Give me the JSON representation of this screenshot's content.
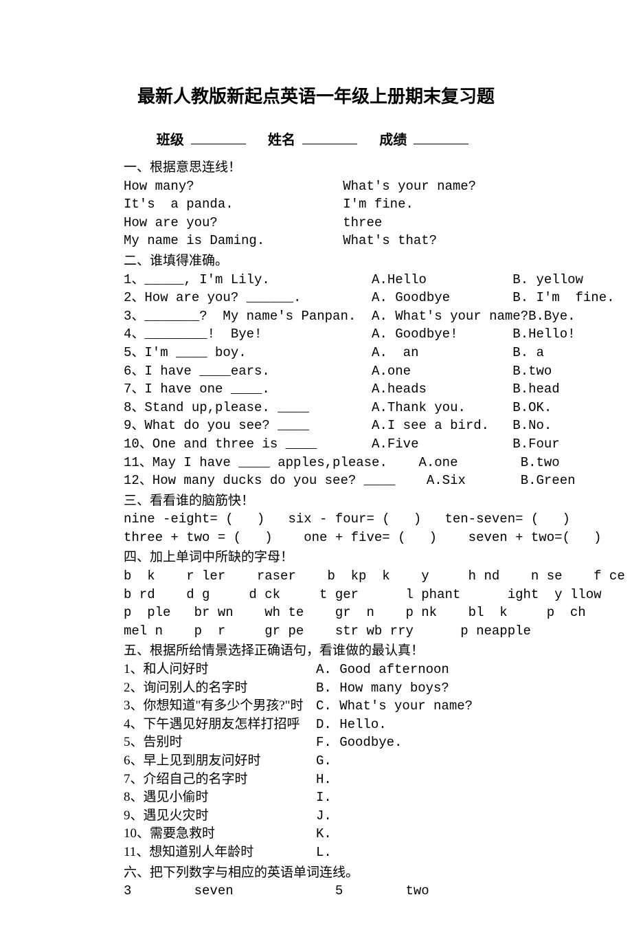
{
  "title": "最新人教版新起点英语一年级上册期末复习题",
  "header": {
    "class_label": "班级",
    "name_label": "姓名",
    "score_label": "成绩"
  },
  "section1": {
    "header": "一、根据意思连线！",
    "rows": [
      {
        "left": "How many?",
        "right": "What's your name?"
      },
      {
        "left": "It's  a panda.",
        "right": "I'm fine."
      },
      {
        "left": "How are you?",
        "right": "three"
      },
      {
        "left": "My name is Daming.",
        "right": "What's that?"
      }
    ]
  },
  "section2": {
    "header": "二、谁填得准确。",
    "questions": [
      {
        "num": "1",
        "stem": "_____, I'm Lily.",
        "a": "A.Hello",
        "b": "B. yellow"
      },
      {
        "num": "2",
        "stem": "How are you? ______.",
        "a": "A. Goodbye",
        "b": "B. I'm  fine."
      },
      {
        "num": "3",
        "stem": "_______?  My name's Panpan.",
        "a": "A. What's your name?",
        "b": "B.Bye."
      },
      {
        "num": "4",
        "stem": "________!  Bye!",
        "a": "A. Goodbye!",
        "b": "B.Hello!"
      },
      {
        "num": "5",
        "stem": "I'm ____ boy.",
        "a": "A.  an",
        "b": "B. a"
      },
      {
        "num": "6",
        "stem": "I have ____ears.",
        "a": "A.one",
        "b": "B.two"
      },
      {
        "num": "7",
        "stem": "I have one ____.",
        "a": "A.heads",
        "b": "B.head"
      },
      {
        "num": "8",
        "stem": "Stand up,please. ____",
        "a": "A.Thank you.",
        "b": "B.OK."
      },
      {
        "num": "9",
        "stem": "What do you see? ____",
        "a": "A.I see a bird.",
        "b": "B.No."
      },
      {
        "num": "10",
        "stem": "One and three is ____",
        "a": "A.Five",
        "b": "B.Four"
      },
      {
        "num": "11",
        "stem": "May I have ____ apples,please.",
        "a": "A.one",
        "b": "B.two"
      },
      {
        "num": "12",
        "stem": "How many ducks do you see? ____",
        "a": "A.Six",
        "b": "B.Green"
      }
    ]
  },
  "section3": {
    "header": "三、看看谁的脑筋快！",
    "lines": [
      "nine -eight= (   )   six - four= (   )   ten-seven= (   )",
      "three + two = (   )    one + five= (   )    seven + two=(   )"
    ]
  },
  "section4": {
    "header": "四、加上单词中所缺的字母！",
    "lines": [
      "b  k    r ler    raser    b  kp  k    y     h nd    n se    f ce",
      "b rd    d g     d ck     t ger      l phant      ight  y llow",
      "p  ple   br wn    wh te    gr  n    p nk    bl  k     p  ch",
      "mel n    p  r     gr pe    str wb rry      p neapple"
    ]
  },
  "section5": {
    "header": "五、根据所给情景选择正确语句，看谁做的最认真！",
    "questions": [
      {
        "num": "1",
        "cn": "和人问好时",
        "opt": "A. Good afternoon"
      },
      {
        "num": "2",
        "cn": "询问别人的名字时",
        "opt": "B. How many boys?"
      },
      {
        "num": "3",
        "cn": "你想知道\"有多少个男孩?\"时",
        "opt": "C. What's your name?"
      },
      {
        "num": "4",
        "cn": "下午遇见好朋友怎样打招呼",
        "opt": "D. Hello."
      },
      {
        "num": "5",
        "cn": "告别时",
        "opt": "F. Goodbye."
      },
      {
        "num": "6",
        "cn": "早上见到朋友问好时",
        "opt": "G."
      },
      {
        "num": "7",
        "cn": "介绍自己的名字时",
        "opt": "H."
      },
      {
        "num": "8",
        "cn": "遇见小偷时",
        "opt": "I."
      },
      {
        "num": "9",
        "cn": "遇见火灾时",
        "opt": "J."
      },
      {
        "num": "10",
        "cn": "需要急救时",
        "opt": "K."
      },
      {
        "num": "11",
        "cn": "想知道别人年龄时",
        "opt": "L."
      }
    ]
  },
  "section6": {
    "header": "六、把下列数字与相应的英语单词连线。",
    "row": "3        seven             5        two"
  }
}
